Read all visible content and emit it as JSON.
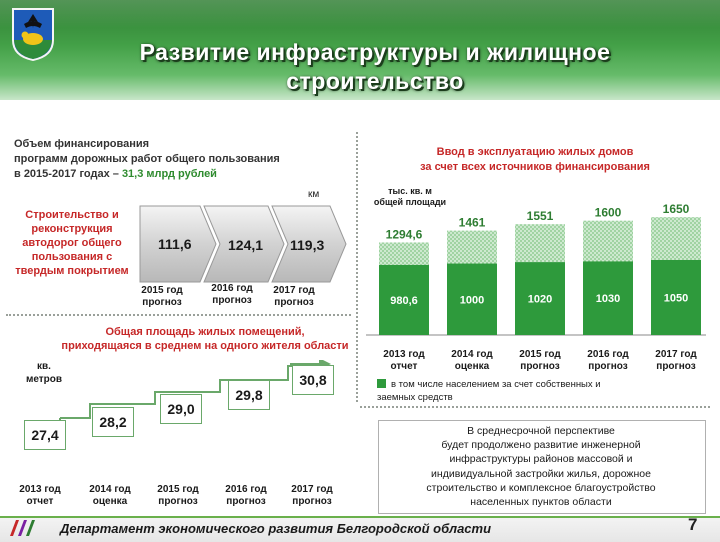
{
  "header": {
    "title_line1": "Развитие инфраструктуры и жилищное",
    "title_line2": "строительство"
  },
  "roads": {
    "title_line1": "Объем финансирования",
    "title_line2": "программ дорожных работ общего пользования",
    "title_line3_prefix": "в 2015-2017 годах – ",
    "title_amount": "31,3 млрд рублей",
    "label_line1": "Строительство и",
    "label_line2": "реконструкция",
    "label_line3": "автодорог общего",
    "label_line4": "пользования с",
    "label_line5": "твердым покрытием",
    "unit": "км",
    "items": [
      {
        "value": "111,6",
        "year_line1": "2015 год",
        "year_line2": "прогноз"
      },
      {
        "value": "124,1",
        "year_line1": "2016 год",
        "year_line2": "прогноз"
      },
      {
        "value": "119,3",
        "year_line1": "2017 год",
        "year_line2": "прогноз"
      }
    ]
  },
  "living_area": {
    "title_line1": "Общая площадь жилых помещений,",
    "title_line2": "приходящаяся в среднем на одного жителя области",
    "unit_line1": "кв.",
    "unit_line2": "метров",
    "items": [
      {
        "value": "27,4",
        "year_line1": "2013 год",
        "year_line2": "отчет"
      },
      {
        "value": "28,2",
        "year_line1": "2014 год",
        "year_line2": "оценка"
      },
      {
        "value": "29,0",
        "year_line1": "2015 год",
        "year_line2": "прогноз"
      },
      {
        "value": "29,8",
        "year_line1": "2016 год",
        "year_line2": "прогноз"
      },
      {
        "value": "30,8",
        "year_line1": "2017 год",
        "year_line2": "прогноз"
      }
    ]
  },
  "housing": {
    "title_line1": "Ввод в эксплуатацию жилых домов",
    "title_line2": "за счет всех источников финансирования",
    "unit_line1": "тыс. кв. м",
    "unit_line2": "общей площади",
    "legend_line1": "в том числе населением за счет собственных и",
    "legend_line2": "заемных средств",
    "note_lines": [
      "В среднесрочной перспективе",
      "будет продолжено развитие инженерной",
      "инфраструктуры районов массовой и",
      "индивидуальной застройки жилья, дорожное",
      "строительство и комплексное благоустройство",
      "населенных пунктов области"
    ],
    "colors": {
      "own_funds": "#2e9a3c",
      "total": "#a5d6a7"
    }
  },
  "chart_data": {
    "type": "bar",
    "title": "Ввод в эксплуатацию жилых домов за счет всех источников финансирования",
    "ylabel": "тыс. кв. м общей площади",
    "categories": [
      "2013 год отчет",
      "2014 год оценка",
      "2015 год прогноз",
      "2016 год прогноз",
      "2017 год прогноз"
    ],
    "total_labels": [
      "1294,6",
      "1461",
      "1551",
      "1600",
      "1650"
    ],
    "own_labels": [
      "980,6",
      "1000",
      "1020",
      "1030",
      "1050"
    ],
    "series": [
      {
        "name": "в том числе населением за счет собственных и заемных средств",
        "values": [
          980.6,
          1000,
          1020,
          1030,
          1050
        ]
      },
      {
        "values": [
          1294.6,
          1461,
          1551,
          1600,
          1650
        ]
      }
    ],
    "ylim": [
      0,
      1750
    ],
    "grid": false,
    "legend": "bottom"
  },
  "footer": {
    "text": "Департамент экономического развития Белгородской области",
    "page": "7"
  }
}
